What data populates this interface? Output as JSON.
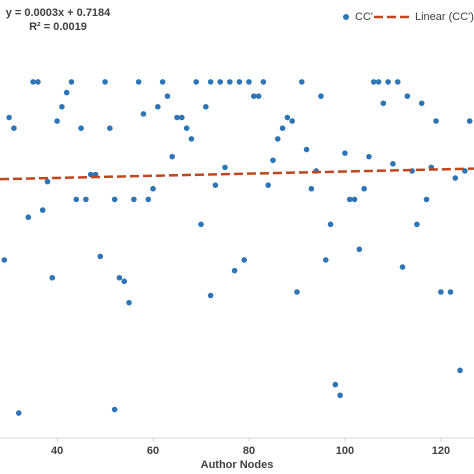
{
  "chart_data": {
    "type": "scatter",
    "x_label": "Author Nodes",
    "equation": "y = 0.0003x + 0.7184",
    "r_squared": "R² = 0.0019",
    "xlim": [
      28.1,
      126.9
    ],
    "ylim": [
      0,
      1.23
    ],
    "xticks": [
      40,
      60,
      80,
      100,
      120
    ],
    "legend": "top-right",
    "series": [
      {
        "name": "CC'",
        "color": "#2e75b6",
        "x": [
          30,
          31,
          29,
          32,
          34,
          35,
          36,
          37,
          38,
          39,
          40,
          41,
          42,
          43,
          44,
          45,
          46,
          47,
          48,
          49,
          50,
          51,
          52,
          52,
          53,
          54,
          55,
          56,
          57,
          58,
          59,
          60,
          61,
          62,
          63,
          64,
          65,
          66,
          67,
          68,
          69,
          70,
          71,
          72,
          72,
          73,
          74,
          75,
          76,
          77,
          78,
          79,
          80,
          81,
          82,
          83,
          84,
          85,
          86,
          87,
          88,
          89,
          90,
          91,
          92,
          93,
          94,
          95,
          96,
          97,
          98,
          99,
          100,
          101,
          102,
          103,
          104,
          105,
          106,
          107,
          108,
          109,
          110,
          111,
          112,
          113,
          114,
          115,
          116,
          117,
          118,
          119,
          120,
          122,
          123,
          124,
          125,
          126
        ],
        "values": [
          0.9,
          0.87,
          0.5,
          0.07,
          0.62,
          1.0,
          1.0,
          0.64,
          0.72,
          0.45,
          0.89,
          0.93,
          0.97,
          1.0,
          0.67,
          0.87,
          0.67,
          0.74,
          0.74,
          0.51,
          1.0,
          0.87,
          0.67,
          0.08,
          0.45,
          0.44,
          0.38,
          0.67,
          1.0,
          0.91,
          0.67,
          0.7,
          0.93,
          1.0,
          0.96,
          0.79,
          0.9,
          0.9,
          0.87,
          0.84,
          1.0,
          0.6,
          0.93,
          1.0,
          0.4,
          0.71,
          1.0,
          0.76,
          1.0,
          0.47,
          1.0,
          0.5,
          1.0,
          0.96,
          0.96,
          1.0,
          0.71,
          0.78,
          0.84,
          0.87,
          0.9,
          0.89,
          0.41,
          1.0,
          0.81,
          0.7,
          0.75,
          0.96,
          0.5,
          0.6,
          0.15,
          0.12,
          0.8,
          0.67,
          0.67,
          0.53,
          0.7,
          0.79,
          1.0,
          1.0,
          0.94,
          1.0,
          0.77,
          1.0,
          0.48,
          0.96,
          0.75,
          0.6,
          0.94,
          0.67,
          0.76,
          0.89,
          0.41,
          0.41,
          0.73,
          0.19,
          0.75,
          0.89
        ]
      }
    ],
    "trendline": {
      "name": "Linear (CC')",
      "color": "#c0461e",
      "slope": 0.0003,
      "intercept": 0.7184
    }
  }
}
